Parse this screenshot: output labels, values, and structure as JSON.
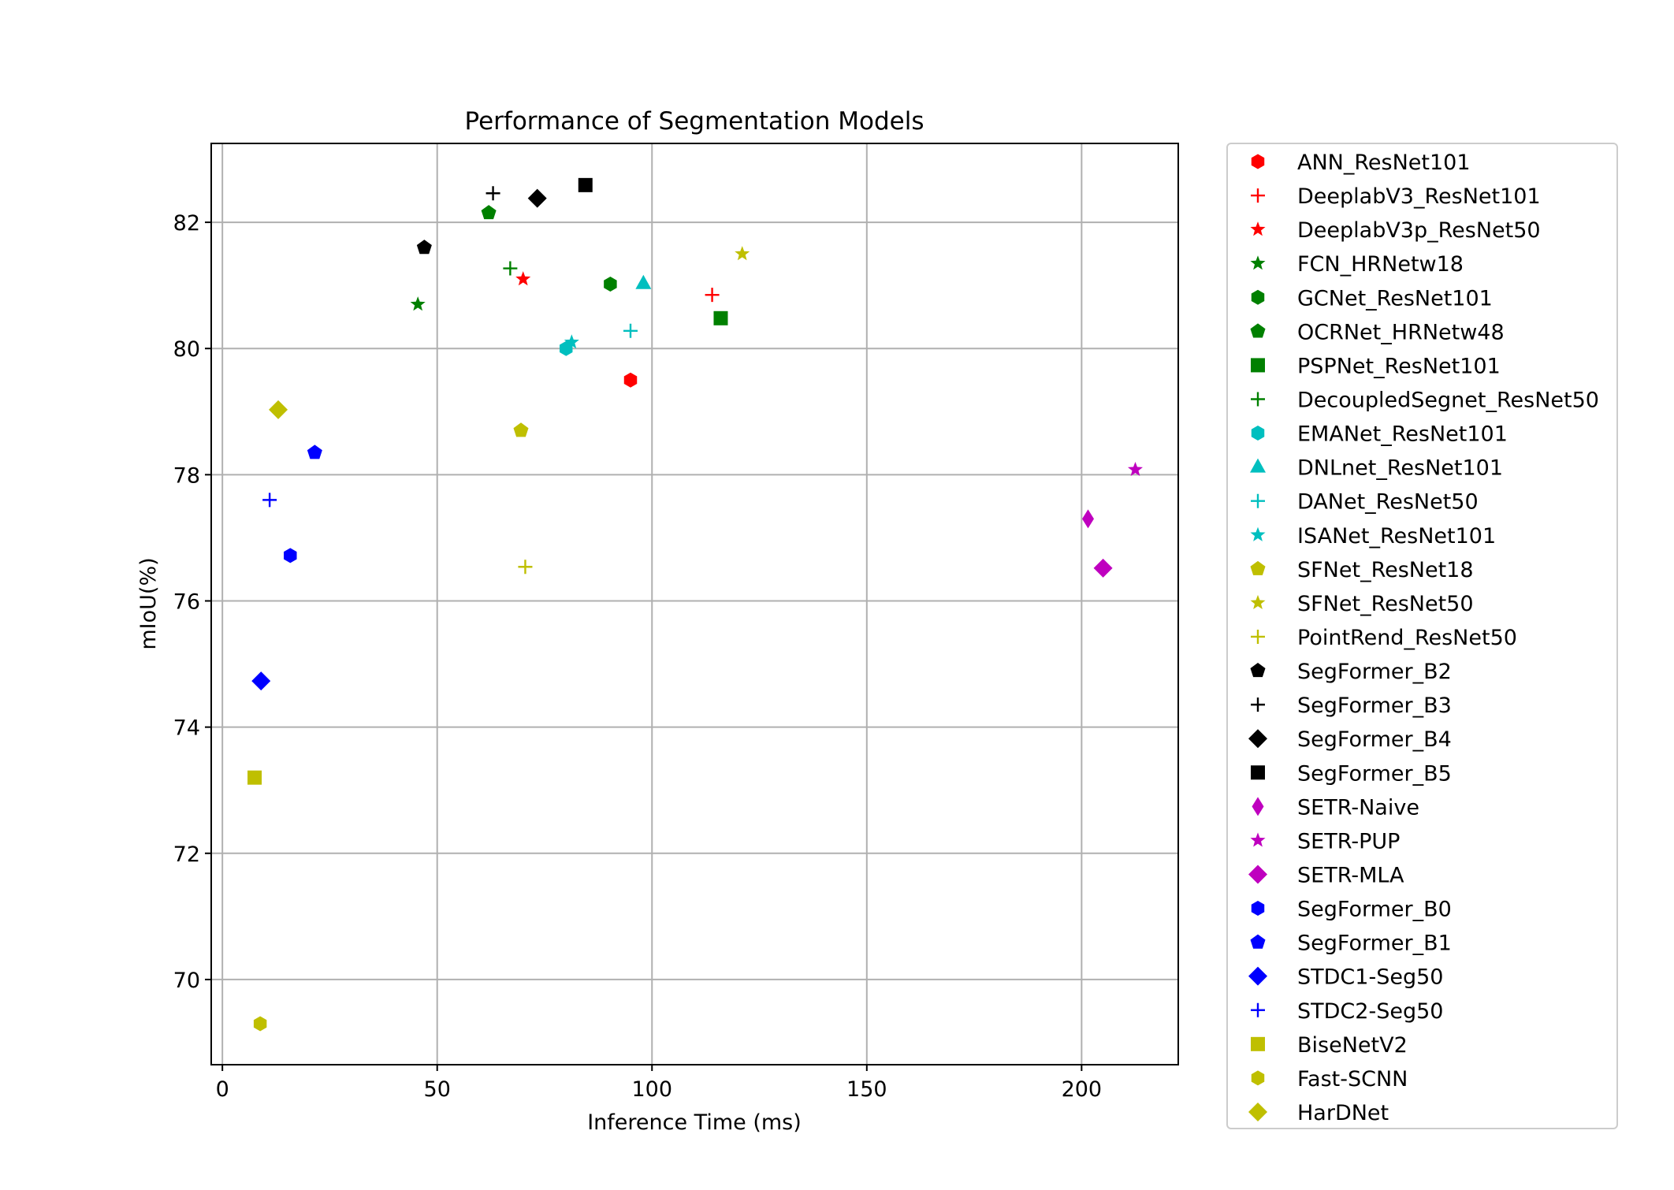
{
  "chart_data": {
    "type": "scatter",
    "title": "Performance of Segmentation Models",
    "xlabel": "Inference Time (ms)",
    "ylabel": "mIoU(%)",
    "xlim": [
      -2.6,
      222.5
    ],
    "ylim": [
      68.65,
      83.25
    ],
    "xticks": [
      0,
      50,
      100,
      150,
      200
    ],
    "yticks": [
      70,
      72,
      74,
      76,
      78,
      80,
      82
    ],
    "grid": true,
    "legend_position": "outside-right",
    "series": [
      {
        "name": "ANN_ResNet101",
        "color": "#ff0000",
        "marker": "hexagon",
        "x": 95,
        "y": 79.5
      },
      {
        "name": "DeeplabV3_ResNet101",
        "color": "#ff0000",
        "marker": "plus",
        "x": 114,
        "y": 80.85
      },
      {
        "name": "DeeplabV3p_ResNet50",
        "color": "#ff0000",
        "marker": "star",
        "x": 70,
        "y": 81.1
      },
      {
        "name": "FCN_HRNetw18",
        "color": "#008000",
        "marker": "star",
        "x": 45.5,
        "y": 80.7
      },
      {
        "name": "GCNet_ResNet101",
        "color": "#008000",
        "marker": "hexagon",
        "x": 90.3,
        "y": 81.02
      },
      {
        "name": "OCRNet_HRNetw48",
        "color": "#008000",
        "marker": "pentagon",
        "x": 62,
        "y": 82.15
      },
      {
        "name": "PSPNet_ResNet101",
        "color": "#008000",
        "marker": "square",
        "x": 116,
        "y": 80.48
      },
      {
        "name": "DecoupledSegnet_ResNet50",
        "color": "#008000",
        "marker": "plus",
        "x": 67,
        "y": 81.27
      },
      {
        "name": "EMANet_ResNet101",
        "color": "#00bfbf",
        "marker": "hexagon",
        "x": 80,
        "y": 80.0
      },
      {
        "name": "DNLnet_ResNet101",
        "color": "#00bfbf",
        "marker": "triangle",
        "x": 98,
        "y": 81.03
      },
      {
        "name": "DANet_ResNet50",
        "color": "#00bfbf",
        "marker": "plus",
        "x": 95,
        "y": 80.28
      },
      {
        "name": "ISANet_ResNet101",
        "color": "#00bfbf",
        "marker": "star",
        "x": 81.3,
        "y": 80.1
      },
      {
        "name": "SFNet_ResNet18",
        "color": "#bfbf00",
        "marker": "pentagon",
        "x": 69.5,
        "y": 78.7
      },
      {
        "name": "SFNet_ResNet50",
        "color": "#bfbf00",
        "marker": "star",
        "x": 121,
        "y": 81.5
      },
      {
        "name": "PointRend_ResNet50",
        "color": "#bfbf00",
        "marker": "plus",
        "x": 70.5,
        "y": 76.54
      },
      {
        "name": "SegFormer_B2",
        "color": "#000000",
        "marker": "pentagon",
        "x": 47,
        "y": 81.6
      },
      {
        "name": "SegFormer_B3",
        "color": "#000000",
        "marker": "plus",
        "x": 63,
        "y": 82.46
      },
      {
        "name": "SegFormer_B4",
        "color": "#000000",
        "marker": "diamond",
        "x": 73.3,
        "y": 82.38
      },
      {
        "name": "SegFormer_B5",
        "color": "#000000",
        "marker": "square",
        "x": 84.5,
        "y": 82.59
      },
      {
        "name": "SETR-Naive",
        "color": "#bf00bf",
        "marker": "thin_diamond",
        "x": 201.5,
        "y": 77.3
      },
      {
        "name": "SETR-PUP",
        "color": "#bf00bf",
        "marker": "star",
        "x": 212.5,
        "y": 78.08
      },
      {
        "name": "SETR-MLA",
        "color": "#bf00bf",
        "marker": "diamond",
        "x": 205,
        "y": 76.52
      },
      {
        "name": "SegFormer_B0",
        "color": "#0000ff",
        "marker": "hexagon",
        "x": 15.8,
        "y": 76.72
      },
      {
        "name": "SegFormer_B1",
        "color": "#0000ff",
        "marker": "pentagon",
        "x": 21.5,
        "y": 78.35
      },
      {
        "name": "STDC1-Seg50",
        "color": "#0000ff",
        "marker": "diamond",
        "x": 9,
        "y": 74.73
      },
      {
        "name": "STDC2-Seg50",
        "color": "#0000ff",
        "marker": "plus",
        "x": 11,
        "y": 77.6
      },
      {
        "name": "BiseNetV2",
        "color": "#bfbf00",
        "marker": "square",
        "x": 7.5,
        "y": 73.2
      },
      {
        "name": "Fast-SCNN",
        "color": "#bfbf00",
        "marker": "hexagon",
        "x": 8.8,
        "y": 69.3
      },
      {
        "name": "HarDNet",
        "color": "#bfbf00",
        "marker": "diamond",
        "x": 13,
        "y": 79.03
      }
    ]
  }
}
